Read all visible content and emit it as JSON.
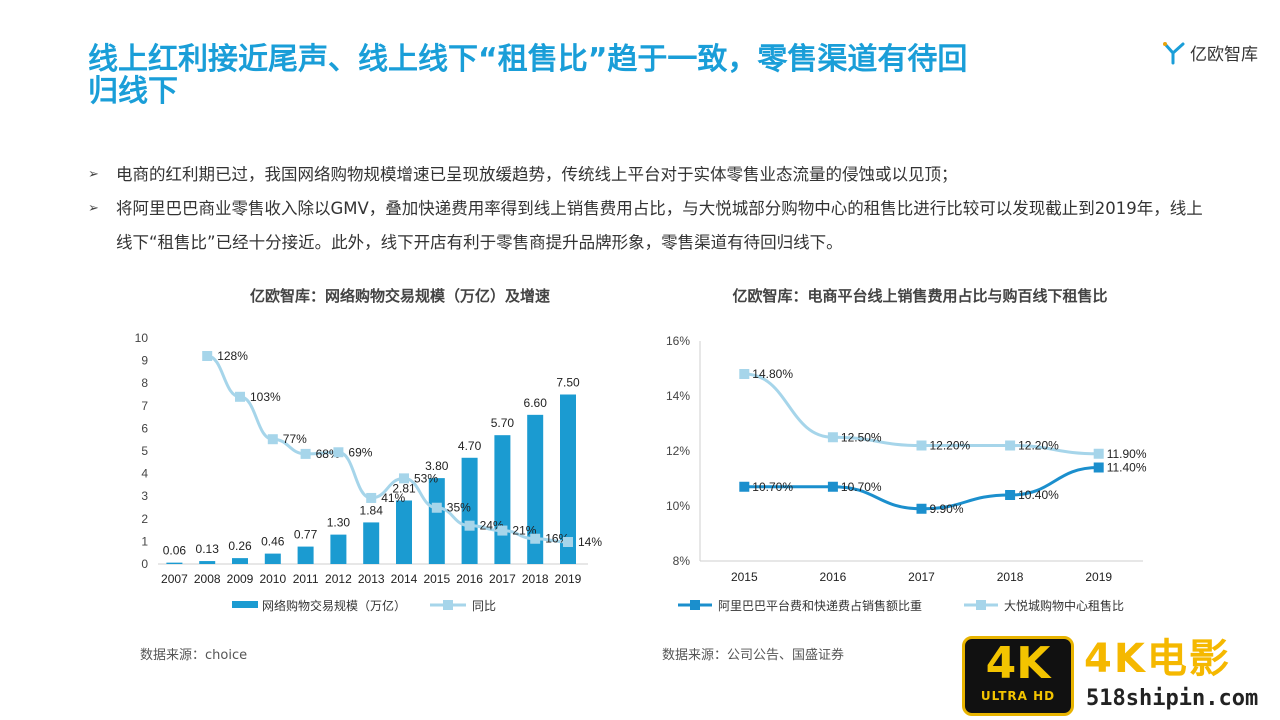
{
  "title": "线上红利接近尾声、线上线下“租售比”趋于一致，零售渠道有待回归线下",
  "logo_text": "亿欧智库",
  "bullets": [
    "电商的红利期已过，我国网络购物规模增速已呈现放缓趋势，传统线上平台对于实体零售业态流量的侵蚀或以见顶；",
    "将阿里巴巴商业零售收入除以GMV，叠加快递费用率得到线上销售费用占比，与大悦城部分购物中心的租售比进行比较可以发现截止到2019年，线上线下“租售比”已经十分接近。此外，线下开店有利于零售商提升品牌形象，零售渠道有待回归线下。"
  ],
  "colors": {
    "title": "#1a9ed8",
    "bar": "#1b9bd1",
    "light": "#a6d5ea",
    "dark": "#1b8fcd"
  },
  "chart_data": [
    {
      "type": "bar",
      "title": "亿欧智库：网络购物交易规模（万亿）及增速",
      "categories": [
        "2007",
        "2008",
        "2009",
        "2010",
        "2011",
        "2012",
        "2013",
        "2014",
        "2015",
        "2016",
        "2017",
        "2018",
        "2019"
      ],
      "ylim": [
        0,
        10
      ],
      "yticks": [
        "0",
        "1",
        "2",
        "3",
        "4",
        "5",
        "6",
        "7",
        "8",
        "9",
        "10"
      ],
      "series": [
        {
          "name": "网络购物交易规模（万亿）",
          "type": "bar",
          "values": [
            0.06,
            0.13,
            0.26,
            0.46,
            0.77,
            1.3,
            1.84,
            2.81,
            3.8,
            4.7,
            5.7,
            6.6,
            7.5
          ],
          "labels": [
            "0.06",
            "0.13",
            "0.26",
            "0.46",
            "0.77",
            "1.30",
            "1.84",
            "2.81",
            "3.80",
            "4.70",
            "5.70",
            "6.60",
            "7.50"
          ]
        },
        {
          "name": "同比",
          "type": "line",
          "values": [
            null,
            128,
            103,
            77,
            68,
            69,
            41,
            53,
            35,
            24,
            21,
            16,
            14
          ],
          "labels": [
            "",
            "128%",
            "103%",
            "77%",
            "68%",
            "69%",
            "41%",
            "53%",
            "35%",
            "24%",
            "21%",
            "16%",
            "14%"
          ]
        }
      ],
      "source": "数据来源：choice"
    },
    {
      "type": "line",
      "title": "亿欧智库：电商平台线上销售费用占比与购百线下租售比",
      "categories": [
        "2015",
        "2016",
        "2017",
        "2018",
        "2019"
      ],
      "ylim": [
        8,
        16
      ],
      "yticks": [
        "8%",
        "10%",
        "12%",
        "14%",
        "16%"
      ],
      "series": [
        {
          "name": "阿里巴巴平台费和快递费占销售额比重",
          "values": [
            10.7,
            10.7,
            9.9,
            10.4,
            11.4
          ],
          "labels": [
            "10.70%",
            "10.70%",
            "9.90%",
            "10.40%",
            "11.40%"
          ]
        },
        {
          "name": "大悦城购物中心租售比",
          "values": [
            14.8,
            12.5,
            12.2,
            12.2,
            11.9
          ],
          "labels": [
            "14.80%",
            "12.50%",
            "12.20%",
            "12.20%",
            "11.90%"
          ]
        }
      ],
      "source": "数据来源：公司公告、国盛证券"
    }
  ],
  "watermark": {
    "badge_big": "4K",
    "badge_small": "ULTRA HD",
    "name": "4K电影",
    "url": "518shipin.com"
  }
}
